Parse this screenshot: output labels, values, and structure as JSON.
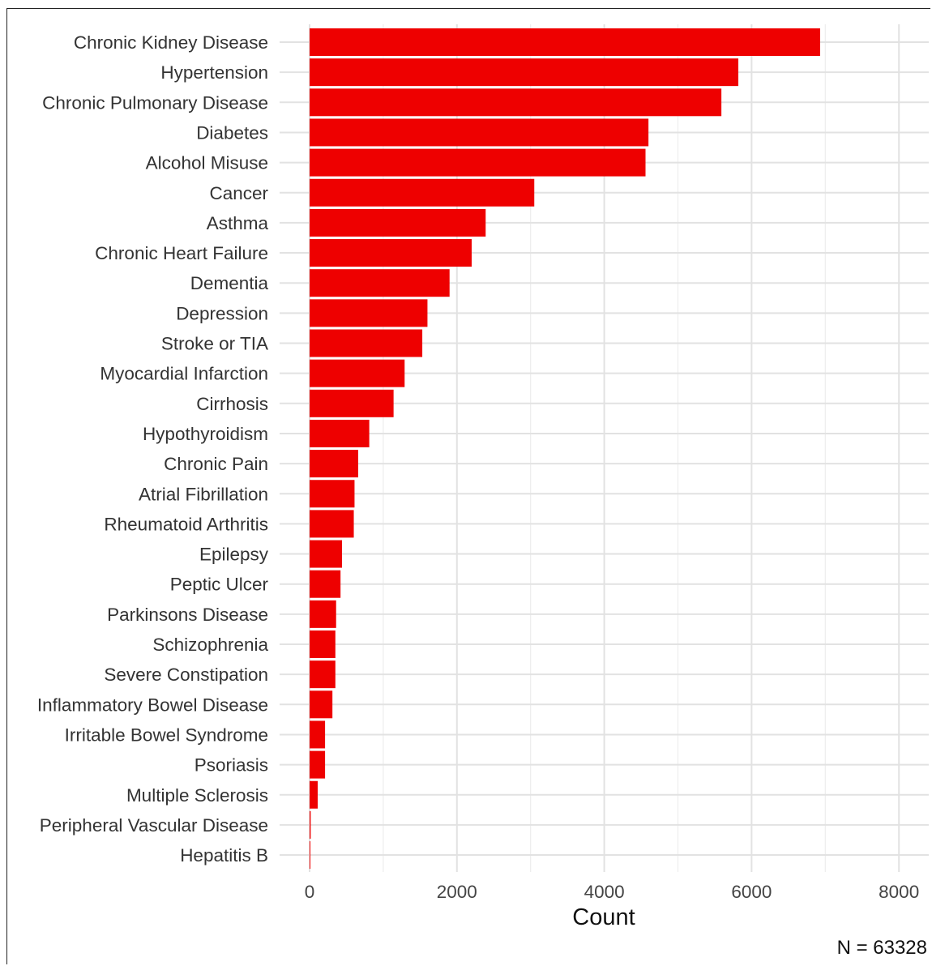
{
  "chart_data": {
    "type": "bar",
    "orientation": "horizontal",
    "categories": [
      "Chronic Kidney Disease",
      "Hypertension",
      "Chronic Pulmonary Disease",
      "Diabetes",
      "Alcohol Misuse",
      "Cancer",
      "Asthma",
      "Chronic Heart Failure",
      "Dementia",
      "Depression",
      "Stroke or TIA",
      "Myocardial Infarction",
      "Cirrhosis",
      "Hypothyroidism",
      "Chronic Pain",
      "Atrial Fibrillation",
      "Rheumatoid Arthritis",
      "Epilepsy",
      "Peptic Ulcer",
      "Parkinsons Disease",
      "Schizophrenia",
      "Severe Constipation",
      "Inflammatory Bowel Disease",
      "Irritable Bowel Syndrome",
      "Psoriasis",
      "Multiple Sclerosis",
      "Peripheral Vascular Disease",
      "Hepatitis B"
    ],
    "values": [
      6930,
      5820,
      5590,
      4600,
      4560,
      3050,
      2390,
      2200,
      1900,
      1600,
      1530,
      1290,
      1140,
      810,
      660,
      610,
      600,
      440,
      420,
      360,
      350,
      350,
      310,
      210,
      210,
      110,
      15,
      10
    ],
    "xlabel": "Count",
    "ylabel": "",
    "xlim": [
      0,
      8400
    ],
    "xticks": [
      0,
      2000,
      4000,
      6000,
      8000
    ],
    "grid": true,
    "bar_color": "#ee0000",
    "annotation": "N = 63328"
  }
}
